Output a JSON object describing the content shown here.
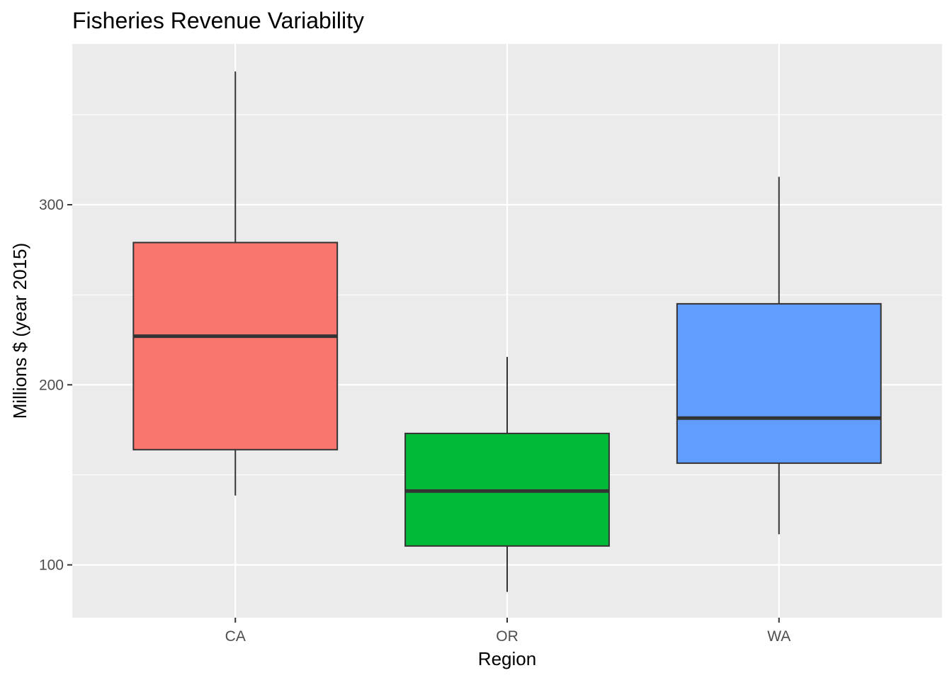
{
  "chart_data": {
    "type": "boxplot",
    "title": "Fisheries Revenue Variability",
    "xlabel": "Region",
    "ylabel": "Millions $ (year 2015)",
    "categories": [
      "CA",
      "OR",
      "WA"
    ],
    "boxes": [
      {
        "category": "CA",
        "min": 138.5,
        "q1": 164,
        "median": 227,
        "q3": 279,
        "max": 374,
        "color": "#F8766D"
      },
      {
        "category": "OR",
        "min": 85,
        "q1": 110.5,
        "median": 141,
        "q3": 173,
        "max": 215.5,
        "color": "#00BA38"
      },
      {
        "category": "WA",
        "min": 117,
        "q1": 156.5,
        "median": 181.5,
        "q3": 245,
        "max": 315.5,
        "color": "#619CFF"
      }
    ],
    "ylim": [
      70.7,
      389.3
    ],
    "y_ticks": [
      100,
      200,
      300
    ],
    "grid": true,
    "legend": "none",
    "colors": {
      "panel_background": "#EBEBEB",
      "gridline": "#FFFFFF",
      "box_outline": "#333333",
      "tick_text": "#4D4D4D"
    }
  }
}
